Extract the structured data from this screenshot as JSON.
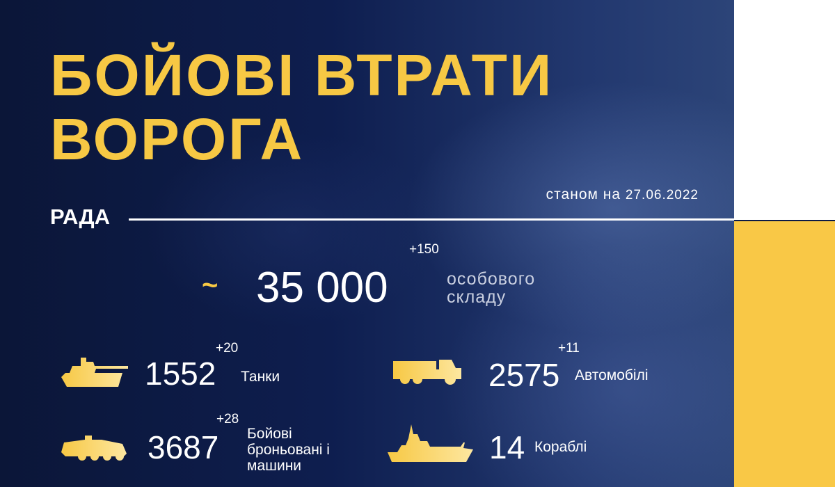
{
  "header": {
    "title_line1": "БОЙОВІ ВТРАТИ",
    "title_line2": "ВОРОГА",
    "date_prefix": "станом на",
    "date": "27.06.2022",
    "brand": "РАДА"
  },
  "personnel": {
    "approx": "~",
    "value": "35 000",
    "delta": "+150",
    "label_line1": "особового",
    "label_line2": "складу"
  },
  "items": [
    {
      "icon": "tank-icon",
      "value": "1552",
      "delta": "+20",
      "label": "Танки"
    },
    {
      "icon": "truck-icon",
      "value": "2575",
      "delta": "+11",
      "label": "Автомобілі"
    },
    {
      "icon": "apc-icon",
      "value": "3687",
      "delta": "+28",
      "label_line1": "Бойові",
      "label_line2": "броньовані і",
      "label_line3": "машини"
    },
    {
      "icon": "ship-icon",
      "value": "14",
      "delta": "",
      "label": "Кораблі"
    }
  ],
  "colors": {
    "accent": "#f7c844",
    "background": "#0c1a45",
    "side_yellow": "#f9c846"
  }
}
